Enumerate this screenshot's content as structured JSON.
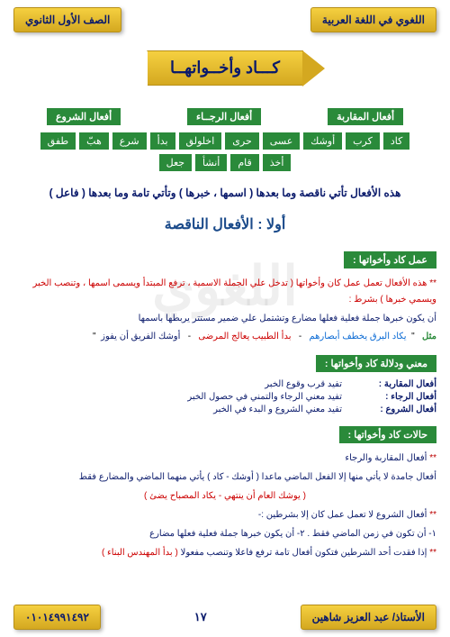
{
  "header": {
    "right_badge": "اللغوي في اللغة العربية",
    "left_badge": "الصف الأول الثانوي"
  },
  "title": "كـــاد وأخــواتهــا",
  "categories": {
    "cat1": "أفعال المقاربة",
    "cat2": "أفعال الرجــاء",
    "cat3": "أفعال الشروع"
  },
  "verbs": {
    "row1": [
      "كاد",
      "كرب",
      "أوشك",
      "عسى",
      "حرى",
      "اخلولق",
      "بدأ",
      "شرع",
      "هبّ",
      "طفق"
    ],
    "row2": [
      "أخذ",
      "قام",
      "أنشأ",
      "جعل"
    ]
  },
  "rule": "هذه الأفعال تأتي ناقصة وما بعدها ( اسمها ، خبرها ) وتأتي تامة وما بعدها ( فاعل )",
  "subtitle": "أولا : الأفعال الناقصة",
  "section1": {
    "header": "عمل كاد وأخواتها :",
    "line1": "هذه الأفعال تعمل عمل كان وأخواتها ( تدخل علي الجملة الاسمية ، ترفع المبتدأ ويسمى اسمها ، وتنصب الخبر ويسمي خبرها ) بشرط :",
    "line2": "أن يكون خبرها جملة فعلية فعلها مضارع وتشتمل علي ضمير مستتر يربطها باسمها"
  },
  "example": {
    "label": "مثل",
    "ex1": "يكاد البرق يخطف أبصارهم",
    "ex2": "بدأ الطبيب يعالج المرضى",
    "ex3": "أوشك الفريق أن يفوز"
  },
  "section2": {
    "header": "معني ودلالة كاد وأخواتها :",
    "rows": [
      {
        "label": "أفعال المقاربة :",
        "text": "تفيد قرب وقوع الخبر"
      },
      {
        "label": "أفعال الرجاء   :",
        "text": "تفيد معني الرجاء والتمني في حصول الخبر"
      },
      {
        "label": "أفعال الشروع :",
        "text": "تفيد معني الشروع و البدء في الخبر"
      }
    ]
  },
  "section3": {
    "header": "حالات كاد وأخواتها :",
    "sub1": "أفعال المقاربة والرجاء",
    "line1_a": "أفعال جامدة لا يأتي منها إلا الفعل الماضي ماعدا ( أوشك  -  كاد ) يأتي منهما الماضي والمضارع فقط",
    "line1_b": "( يوشك العام أن ينتهي - يكاد المصباح يضئ )",
    "sub2": "أفعال الشروع لا تعمل عمل كان إلا بشرطين :-",
    "cond": "١- أن تكون في زمن الماضي فقط .   ٢- أن يكون خبرها جملة فعلية فعلها مضارع",
    "note_a": "إذا فقدت أحد الشرطين فتكون أفعال تامة ترفع فاعلا وتنصب مفعولا",
    "note_b": "( بدأ المهندس البناء )"
  },
  "footer": {
    "teacher": "الأستاذ/ عبد العزيز شاهين",
    "page": "١٧",
    "phone": "٠١٠١٤٩٩١٤٩٢"
  },
  "watermark": "اللغوي",
  "colors": {
    "green": "#2a8a3a",
    "navy": "#0a1a6b",
    "gold1": "#f5d040",
    "gold2": "#d4a820",
    "red": "#c00",
    "blue": "#0a6ad4"
  }
}
